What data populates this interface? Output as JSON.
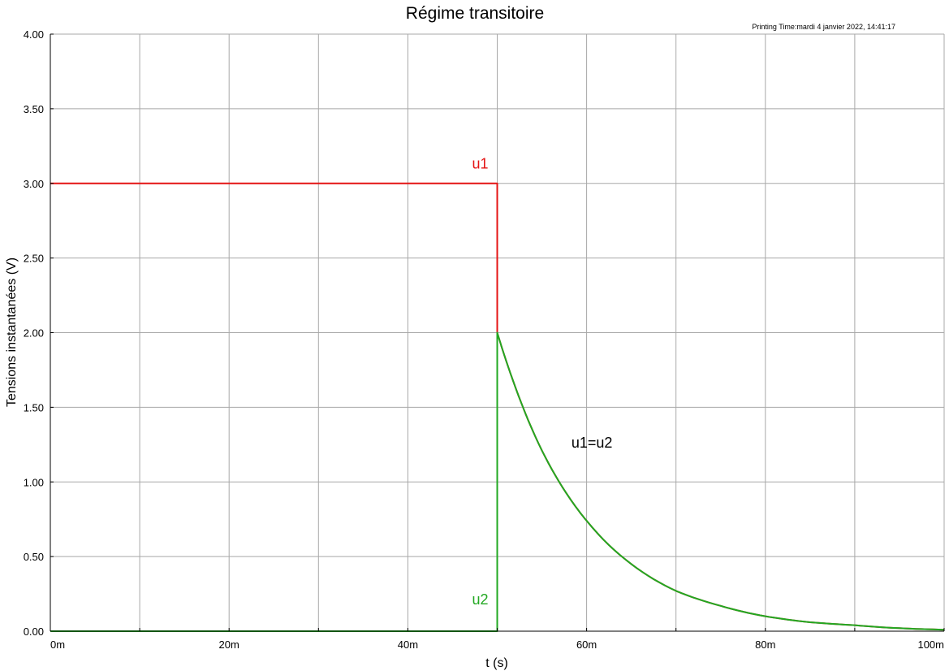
{
  "colors": {
    "u1": "#e41414",
    "u2": "#22a822",
    "grid": "#a8a8a8",
    "axis": "#000000"
  },
  "chart_data": {
    "type": "line",
    "title": "Régime transitoire",
    "printing_time": "Printing Time:mardi 4 janvier 2022, 14:41:17",
    "xlabel": "t (s)",
    "ylabel": "Tensions instantanées (V)",
    "xlim": [
      0,
      100
    ],
    "ylim": [
      0,
      4
    ],
    "x_unit": "ms",
    "grid": true,
    "x_ticks": [
      {
        "value": 0,
        "label": "0m"
      },
      {
        "value": 20,
        "label": "20m"
      },
      {
        "value": 40,
        "label": "40m"
      },
      {
        "value": 60,
        "label": "60m"
      },
      {
        "value": 80,
        "label": "80m"
      },
      {
        "value": 100,
        "label": "100m"
      }
    ],
    "y_ticks": [
      {
        "value": 0,
        "label": "0.00"
      },
      {
        "value": 0.5,
        "label": "0.50"
      },
      {
        "value": 1,
        "label": "1.00"
      },
      {
        "value": 1.5,
        "label": "1.50"
      },
      {
        "value": 2,
        "label": "2.00"
      },
      {
        "value": 2.5,
        "label": "2.50"
      },
      {
        "value": 3,
        "label": "3.00"
      },
      {
        "value": 3.5,
        "label": "3.50"
      },
      {
        "value": 4,
        "label": "4.00"
      }
    ],
    "series": [
      {
        "name": "u1",
        "color": "#e41414",
        "x": [
          0,
          50,
          50,
          52,
          55,
          58,
          60,
          65,
          70,
          75,
          80,
          85,
          90,
          95,
          100
        ],
        "y": [
          3,
          3,
          2,
          1.64,
          1.21,
          0.9,
          0.74,
          0.45,
          0.27,
          0.17,
          0.1,
          0.06,
          0.04,
          0.02,
          0.01
        ]
      },
      {
        "name": "u2",
        "color": "#22a822",
        "x": [
          0,
          50,
          50,
          52,
          55,
          58,
          60,
          65,
          70,
          75,
          80,
          85,
          90,
          95,
          100
        ],
        "y": [
          0,
          0,
          2,
          1.64,
          1.21,
          0.9,
          0.74,
          0.45,
          0.27,
          0.17,
          0.1,
          0.06,
          0.04,
          0.02,
          0.01
        ]
      }
    ],
    "annotations": [
      {
        "text": "u1",
        "color": "#e41414",
        "x": 49,
        "y": 3.1
      },
      {
        "text": "u2",
        "color": "#22a822",
        "x": 49,
        "y": 0.18
      },
      {
        "text": "u1=u2",
        "color": "#000000",
        "x": 58.3,
        "y": 1.23
      }
    ]
  }
}
